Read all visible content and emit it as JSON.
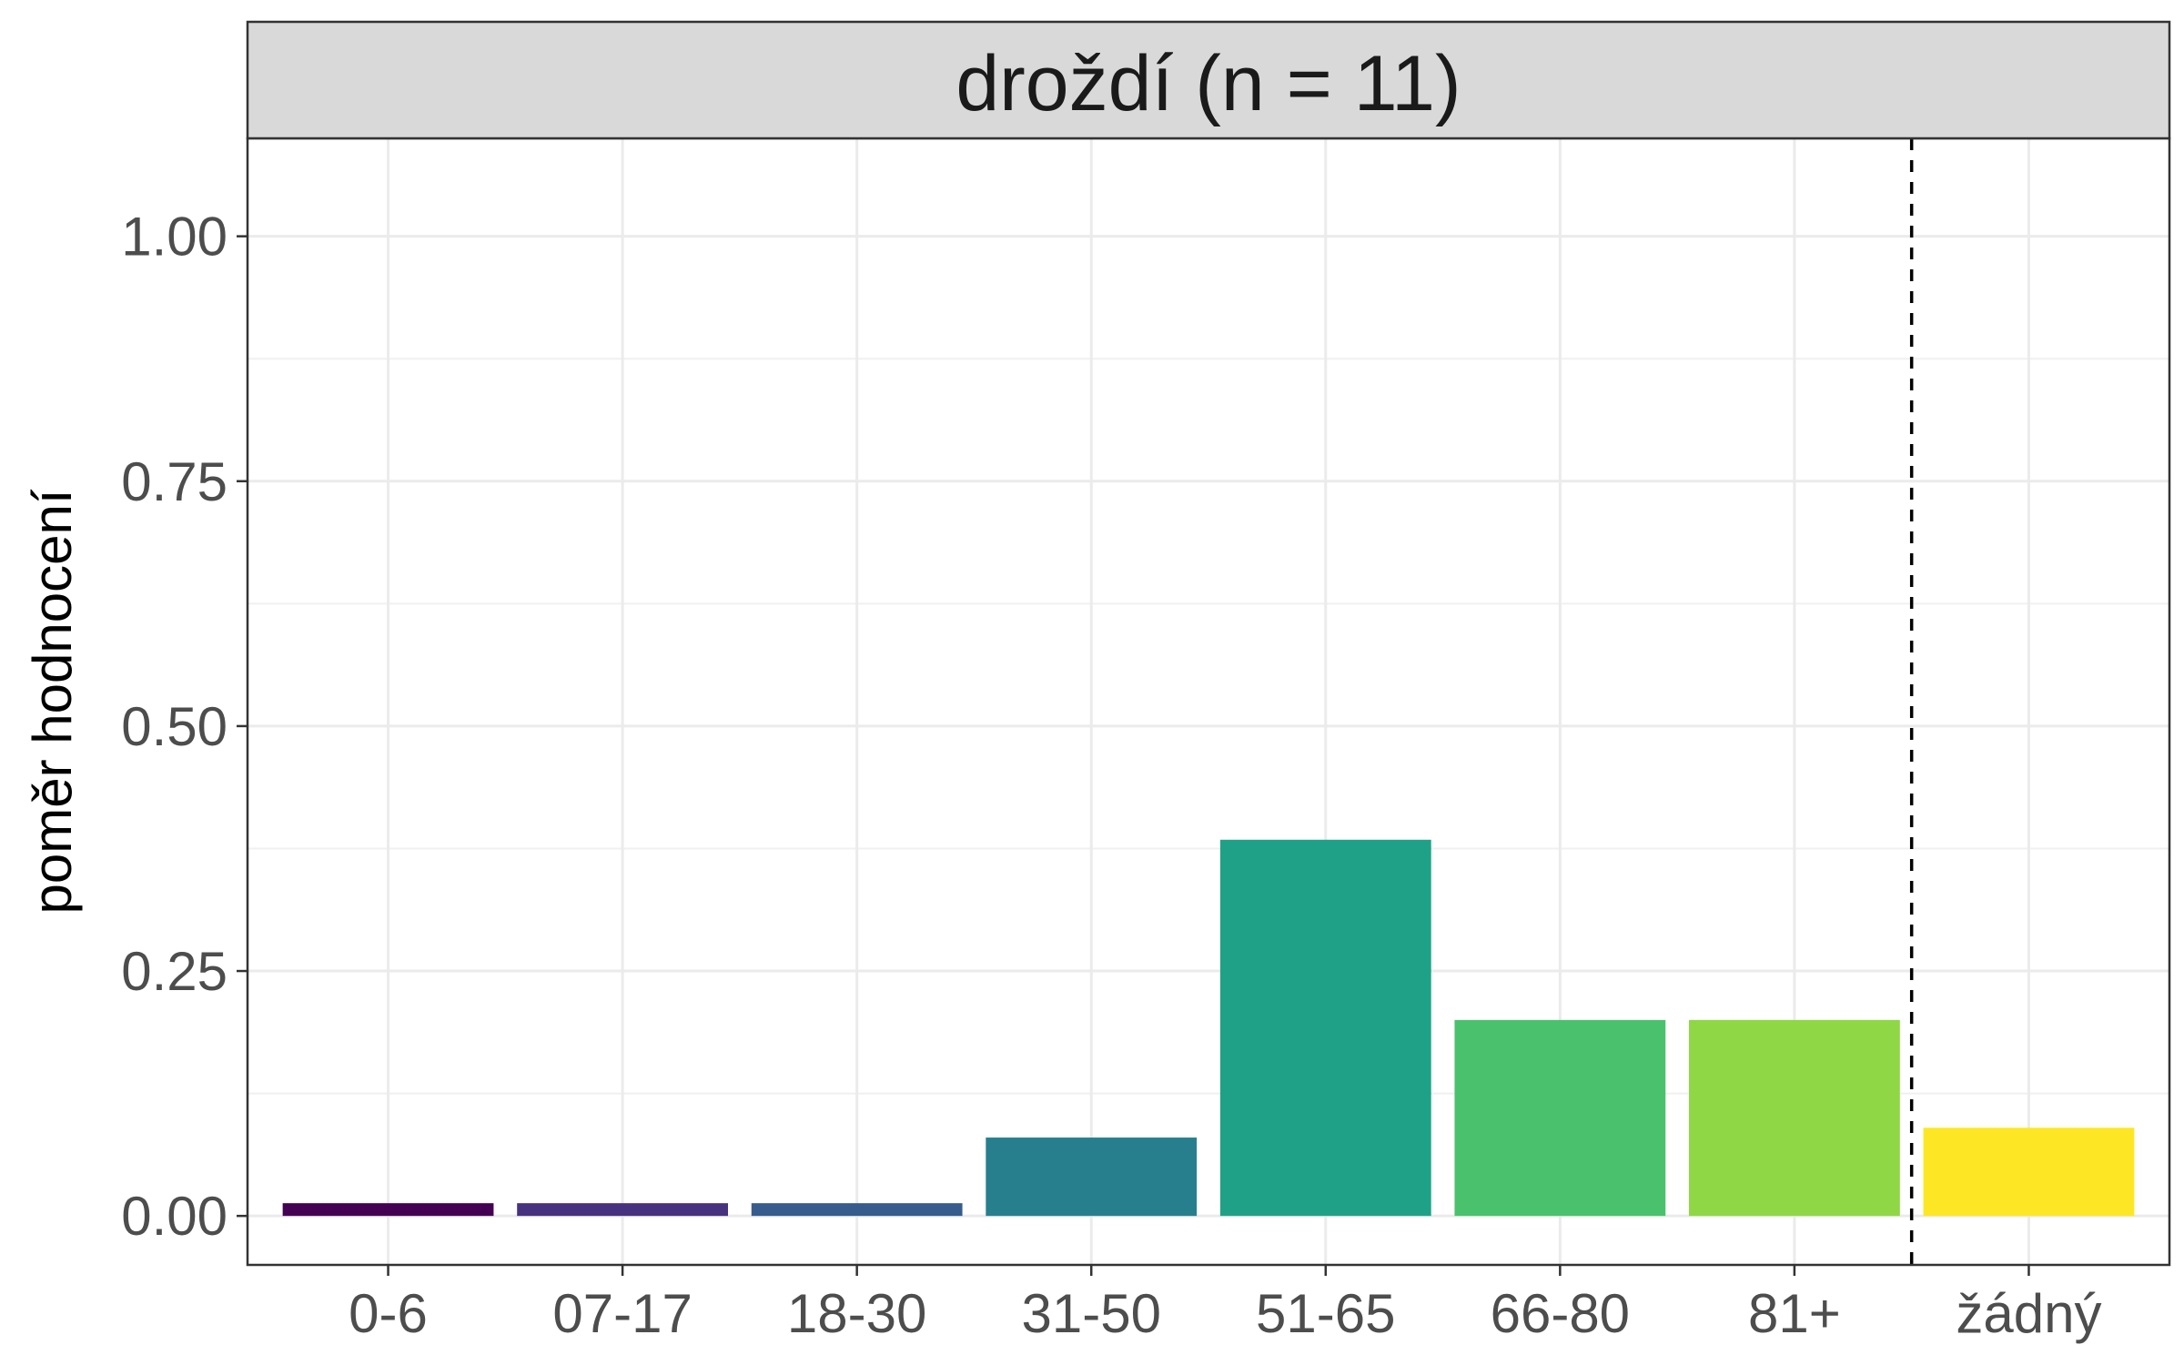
{
  "chart_data": {
    "type": "bar",
    "facet_title": "droždí (n = 11)",
    "ylabel": "poměr hodnocení",
    "xlabel": "",
    "ylim": [
      -0.05,
      1.1
    ],
    "y_ticks": [
      0.0,
      0.25,
      0.5,
      0.75,
      1.0
    ],
    "y_tick_labels": [
      "0.00",
      "0.25",
      "0.50",
      "0.75",
      "1.00"
    ],
    "categories": [
      "0-6",
      "07-17",
      "18-30",
      "31-50",
      "51-65",
      "66-80",
      "81+",
      "žádný"
    ],
    "values": [
      0.013,
      0.013,
      0.013,
      0.08,
      0.384,
      0.2,
      0.2,
      0.09
    ],
    "colors": [
      "#440154",
      "#46327E",
      "#365C8D",
      "#277F8E",
      "#1FA187",
      "#4AC16D",
      "#8FD744",
      "#FDE725"
    ],
    "reference_line": {
      "between": [
        "81+",
        "žádný"
      ],
      "style": "dashed"
    },
    "grid": true,
    "legend": "none"
  }
}
